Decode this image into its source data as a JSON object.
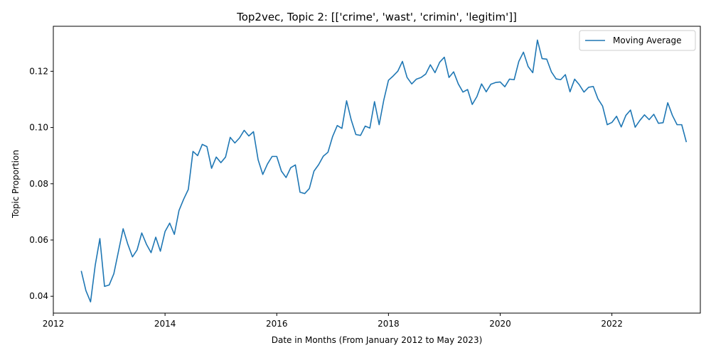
{
  "chart_data": {
    "type": "line",
    "title": "Top2vec, Topic 2: [['crime', 'wast', 'crimin', 'legitim']]",
    "xlabel": "Date in Months (From January 2012 to May 2023)",
    "ylabel": "Topic Proportion",
    "xlim": [
      "2012-01",
      "2023-08"
    ],
    "ylim": [
      0.034,
      0.136
    ],
    "x_ticks": [
      "2012",
      "2014",
      "2016",
      "2018",
      "2020",
      "2022"
    ],
    "y_ticks": [
      "0.04",
      "0.06",
      "0.08",
      "0.10",
      "0.12"
    ],
    "legend_position": "top-right",
    "grid": false,
    "series": [
      {
        "name": "Moving Average",
        "color": "#1f77b4",
        "x": [
          "2012-07",
          "2012-08",
          "2012-09",
          "2012-10",
          "2012-11",
          "2012-12",
          "2013-01",
          "2013-02",
          "2013-03",
          "2013-04",
          "2013-05",
          "2013-06",
          "2013-07",
          "2013-08",
          "2013-09",
          "2013-10",
          "2013-11",
          "2013-12",
          "2014-01",
          "2014-02",
          "2014-03",
          "2014-04",
          "2014-05",
          "2014-06",
          "2014-07",
          "2014-08",
          "2014-09",
          "2014-10",
          "2014-11",
          "2014-12",
          "2015-01",
          "2015-02",
          "2015-03",
          "2015-04",
          "2015-05",
          "2015-06",
          "2015-07",
          "2015-08",
          "2015-09",
          "2015-10",
          "2015-11",
          "2015-12",
          "2016-01",
          "2016-02",
          "2016-03",
          "2016-04",
          "2016-05",
          "2016-06",
          "2016-07",
          "2016-08",
          "2016-09",
          "2016-10",
          "2016-11",
          "2016-12",
          "2017-01",
          "2017-02",
          "2017-03",
          "2017-04",
          "2017-05",
          "2017-06",
          "2017-07",
          "2017-08",
          "2017-09",
          "2017-10",
          "2017-11",
          "2017-12",
          "2018-01",
          "2018-02",
          "2018-03",
          "2018-04",
          "2018-05",
          "2018-06",
          "2018-07",
          "2018-08",
          "2018-09",
          "2018-10",
          "2018-11",
          "2018-12",
          "2019-01",
          "2019-02",
          "2019-03",
          "2019-04",
          "2019-05",
          "2019-06",
          "2019-07",
          "2019-08",
          "2019-09",
          "2019-10",
          "2019-11",
          "2019-12",
          "2020-01",
          "2020-02",
          "2020-03",
          "2020-04",
          "2020-05",
          "2020-06",
          "2020-07",
          "2020-08",
          "2020-09",
          "2020-10",
          "2020-11",
          "2020-12",
          "2021-01",
          "2021-02",
          "2021-03",
          "2021-04",
          "2021-05",
          "2021-06",
          "2021-07",
          "2021-08",
          "2021-09",
          "2021-10",
          "2021-11",
          "2021-12",
          "2022-01",
          "2022-02",
          "2022-03",
          "2022-04",
          "2022-05",
          "2022-06",
          "2022-07",
          "2022-08",
          "2022-09",
          "2022-10",
          "2022-11",
          "2022-12",
          "2023-01",
          "2023-02",
          "2023-03",
          "2023-04",
          "2023-05"
        ],
        "values": [
          0.049,
          0.042,
          0.038,
          0.051,
          0.0605,
          0.0435,
          0.044,
          0.048,
          0.056,
          0.064,
          0.0585,
          0.054,
          0.0565,
          0.0625,
          0.0585,
          0.0555,
          0.061,
          0.056,
          0.063,
          0.066,
          0.062,
          0.0705,
          0.0745,
          0.078,
          0.0915,
          0.09,
          0.094,
          0.0932,
          0.0855,
          0.0895,
          0.0875,
          0.0895,
          0.0965,
          0.0945,
          0.0963,
          0.099,
          0.097,
          0.0985,
          0.0885,
          0.0833,
          0.087,
          0.0897,
          0.0897,
          0.0845,
          0.0822,
          0.0857,
          0.0867,
          0.077,
          0.0765,
          0.0783,
          0.0845,
          0.0868,
          0.0898,
          0.0912,
          0.0968,
          0.1007,
          0.0997,
          0.1095,
          0.1027,
          0.0975,
          0.0972,
          0.1005,
          0.0998,
          0.1092,
          0.101,
          0.1098,
          0.1168,
          0.1183,
          0.12,
          0.1235,
          0.1178,
          0.1155,
          0.1172,
          0.1178,
          0.119,
          0.1223,
          0.1195,
          0.1232,
          0.125,
          0.1178,
          0.1198,
          0.1155,
          0.1126,
          0.1135,
          0.1082,
          0.111,
          0.1155,
          0.1127,
          0.1154,
          0.116,
          0.1162,
          0.1145,
          0.1172,
          0.117,
          0.1235,
          0.1268,
          0.1217,
          0.1195,
          0.1311,
          0.1245,
          0.1243,
          0.1198,
          0.1173,
          0.117,
          0.1188,
          0.1127,
          0.1172,
          0.1152,
          0.1126,
          0.1143,
          0.1146,
          0.1102,
          0.1076,
          0.101,
          0.1018,
          0.104,
          0.1002,
          0.1043,
          0.1062,
          0.1001,
          0.1025,
          0.1045,
          0.1028,
          0.1047,
          0.1015,
          0.1017,
          0.1088,
          0.1043,
          0.101,
          0.101,
          0.0948
        ]
      }
    ]
  }
}
